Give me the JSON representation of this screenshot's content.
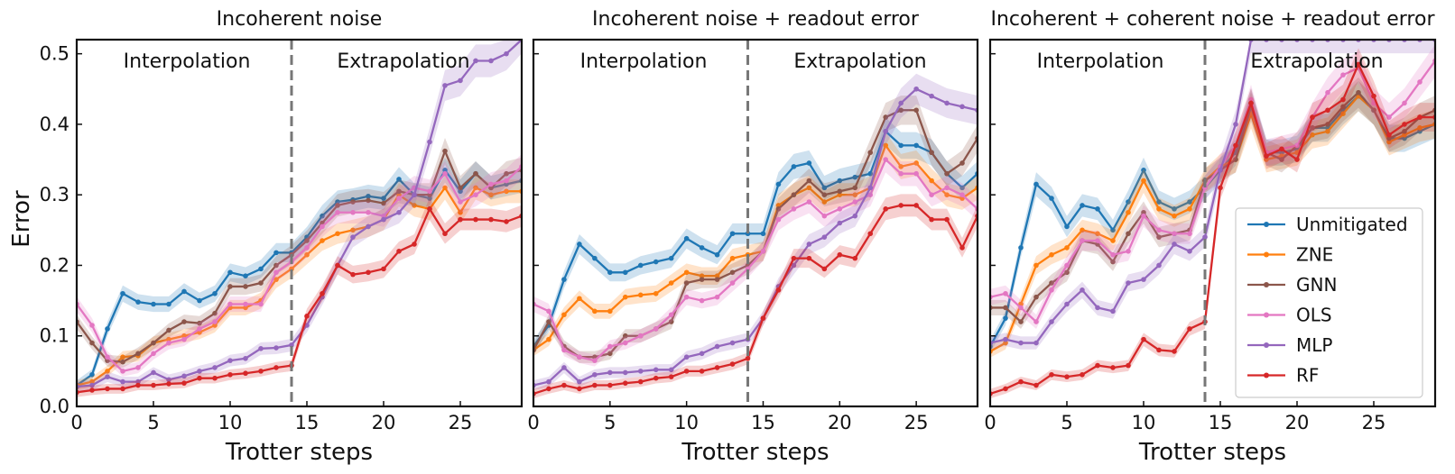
{
  "figure": {
    "ylabel": "Error",
    "xlabel": "Trotter steps",
    "region_left": "Interpolation",
    "region_right": "Extrapolation"
  },
  "colors": {
    "Unmitigated": "#1f77b4",
    "ZNE": "#ff7f0e",
    "GNN": "#8c564b",
    "OLS": "#e377c2",
    "MLP": "#9467bd",
    "RF": "#d62728"
  },
  "chart_data": [
    {
      "type": "line",
      "title": "Incoherent noise",
      "xlabel": "Trotter steps",
      "ylabel": "Error",
      "xlim": [
        0,
        29
      ],
      "ylim": [
        0,
        0.52
      ],
      "xticks": [
        0,
        5,
        10,
        15,
        20,
        25
      ],
      "yticks": [
        0.0,
        0.1,
        0.2,
        0.3,
        0.4,
        0.5
      ],
      "split_x": 14,
      "x": [
        0,
        1,
        2,
        3,
        4,
        5,
        6,
        7,
        8,
        9,
        10,
        11,
        12,
        13,
        14,
        15,
        16,
        17,
        18,
        19,
        20,
        21,
        22,
        23,
        24,
        25,
        26,
        27,
        28,
        29
      ],
      "series": [
        {
          "name": "Unmitigated",
          "values": [
            0.03,
            0.045,
            0.11,
            0.16,
            0.148,
            0.145,
            0.145,
            0.163,
            0.15,
            0.16,
            0.19,
            0.185,
            0.195,
            0.218,
            0.218,
            0.24,
            0.27,
            0.29,
            0.293,
            0.298,
            0.295,
            0.322,
            0.3,
            0.295,
            0.335,
            0.305,
            0.33,
            0.31,
            0.315,
            0.32
          ]
        },
        {
          "name": "ZNE",
          "values": [
            0.03,
            0.035,
            0.05,
            0.07,
            0.072,
            0.09,
            0.095,
            0.1,
            0.105,
            0.115,
            0.14,
            0.14,
            0.15,
            0.18,
            0.195,
            0.215,
            0.235,
            0.245,
            0.25,
            0.255,
            0.265,
            0.3,
            0.285,
            0.28,
            0.31,
            0.275,
            0.31,
            0.3,
            0.305,
            0.305
          ]
        },
        {
          "name": "GNN",
          "values": [
            0.12,
            0.09,
            0.065,
            0.063,
            0.075,
            0.09,
            0.108,
            0.12,
            0.118,
            0.132,
            0.17,
            0.17,
            0.175,
            0.2,
            0.215,
            0.235,
            0.26,
            0.285,
            0.29,
            0.292,
            0.288,
            0.305,
            0.3,
            0.3,
            0.362,
            0.31,
            0.33,
            0.31,
            0.33,
            0.335
          ]
        },
        {
          "name": "OLS",
          "values": [
            0.145,
            0.115,
            0.07,
            0.05,
            0.055,
            0.075,
            0.09,
            0.095,
            0.11,
            0.12,
            0.145,
            0.145,
            0.145,
            0.19,
            0.205,
            0.225,
            0.255,
            0.275,
            0.275,
            0.275,
            0.27,
            0.295,
            0.31,
            0.305,
            0.33,
            0.29,
            0.3,
            0.315,
            0.32,
            0.34
          ]
        },
        {
          "name": "MLP",
          "values": [
            0.028,
            0.03,
            0.042,
            0.035,
            0.035,
            0.048,
            0.038,
            0.043,
            0.05,
            0.055,
            0.065,
            0.068,
            0.082,
            0.083,
            0.087,
            0.115,
            0.155,
            0.2,
            0.24,
            0.255,
            0.265,
            0.275,
            0.3,
            0.375,
            0.455,
            0.462,
            0.49,
            0.49,
            0.5,
            0.525
          ]
        },
        {
          "name": "RF",
          "values": [
            0.02,
            0.023,
            0.025,
            0.025,
            0.03,
            0.03,
            0.032,
            0.033,
            0.04,
            0.04,
            0.045,
            0.047,
            0.05,
            0.055,
            0.058,
            0.128,
            0.16,
            0.2,
            0.187,
            0.19,
            0.195,
            0.22,
            0.23,
            0.28,
            0.245,
            0.265,
            0.265,
            0.265,
            0.262,
            0.27
          ]
        }
      ]
    },
    {
      "type": "line",
      "title": "Incoherent noise + readout error",
      "xlabel": "Trotter steps",
      "ylabel": "",
      "xlim": [
        0,
        29
      ],
      "ylim": [
        0,
        0.52
      ],
      "xticks": [
        0,
        5,
        10,
        15,
        20,
        25
      ],
      "yticks": [
        0.0,
        0.1,
        0.2,
        0.3,
        0.4,
        0.5
      ],
      "split_x": 14,
      "x": [
        0,
        1,
        2,
        3,
        4,
        5,
        6,
        7,
        8,
        9,
        10,
        11,
        12,
        13,
        14,
        15,
        16,
        17,
        18,
        19,
        20,
        21,
        22,
        23,
        24,
        25,
        26,
        27,
        28,
        29
      ],
      "series": [
        {
          "name": "Unmitigated",
          "values": [
            0.085,
            0.115,
            0.18,
            0.23,
            0.21,
            0.19,
            0.19,
            0.2,
            0.205,
            0.21,
            0.238,
            0.225,
            0.215,
            0.245,
            0.245,
            0.245,
            0.315,
            0.34,
            0.345,
            0.31,
            0.32,
            0.325,
            0.33,
            0.39,
            0.37,
            0.37,
            0.36,
            0.33,
            0.31,
            0.33
          ]
        },
        {
          "name": "ZNE",
          "values": [
            0.08,
            0.095,
            0.13,
            0.153,
            0.135,
            0.135,
            0.155,
            0.158,
            0.16,
            0.175,
            0.19,
            0.185,
            0.185,
            0.21,
            0.215,
            0.22,
            0.285,
            0.3,
            0.31,
            0.29,
            0.3,
            0.3,
            0.31,
            0.37,
            0.34,
            0.345,
            0.32,
            0.3,
            0.295,
            0.31
          ]
        },
        {
          "name": "GNN",
          "values": [
            0.08,
            0.12,
            0.085,
            0.07,
            0.07,
            0.075,
            0.1,
            0.1,
            0.11,
            0.12,
            0.175,
            0.18,
            0.18,
            0.19,
            0.2,
            0.22,
            0.28,
            0.3,
            0.32,
            0.3,
            0.305,
            0.31,
            0.36,
            0.41,
            0.42,
            0.42,
            0.36,
            0.33,
            0.345,
            0.38
          ]
        },
        {
          "name": "OLS",
          "values": [
            0.145,
            0.135,
            0.08,
            0.07,
            0.065,
            0.085,
            0.09,
            0.1,
            0.11,
            0.13,
            0.155,
            0.15,
            0.155,
            0.175,
            0.195,
            0.22,
            0.265,
            0.28,
            0.29,
            0.27,
            0.28,
            0.29,
            0.3,
            0.35,
            0.33,
            0.33,
            0.3,
            0.31,
            0.3,
            0.28
          ]
        },
        {
          "name": "MLP",
          "values": [
            0.03,
            0.035,
            0.055,
            0.035,
            0.045,
            0.048,
            0.048,
            0.05,
            0.052,
            0.052,
            0.07,
            0.075,
            0.085,
            0.09,
            0.095,
            0.125,
            0.17,
            0.2,
            0.23,
            0.24,
            0.26,
            0.27,
            0.31,
            0.39,
            0.43,
            0.45,
            0.44,
            0.43,
            0.425,
            0.42
          ]
        },
        {
          "name": "RF",
          "values": [
            0.018,
            0.025,
            0.03,
            0.025,
            0.03,
            0.03,
            0.033,
            0.035,
            0.04,
            0.042,
            0.05,
            0.05,
            0.055,
            0.06,
            0.068,
            0.125,
            0.165,
            0.21,
            0.21,
            0.195,
            0.215,
            0.21,
            0.245,
            0.28,
            0.285,
            0.285,
            0.265,
            0.265,
            0.225,
            0.27
          ]
        }
      ]
    },
    {
      "type": "line",
      "title": "Incoherent + coherent noise + readout error",
      "xlabel": "Trotter steps",
      "ylabel": "",
      "xlim": [
        0,
        29
      ],
      "ylim": [
        0,
        0.52
      ],
      "xticks": [
        0,
        5,
        10,
        15,
        20,
        25
      ],
      "yticks": [
        0.0,
        0.1,
        0.2,
        0.3,
        0.4,
        0.5
      ],
      "split_x": 14,
      "x": [
        0,
        1,
        2,
        3,
        4,
        5,
        6,
        7,
        8,
        9,
        10,
        11,
        12,
        13,
        14,
        15,
        16,
        17,
        18,
        19,
        20,
        21,
        22,
        23,
        24,
        25,
        26,
        27,
        28,
        29
      ],
      "series": [
        {
          "name": "Unmitigated",
          "values": [
            0.085,
            0.125,
            0.225,
            0.315,
            0.295,
            0.255,
            0.285,
            0.28,
            0.25,
            0.29,
            0.335,
            0.29,
            0.28,
            0.29,
            0.31,
            0.335,
            0.36,
            0.43,
            0.36,
            0.36,
            0.365,
            0.395,
            0.395,
            0.42,
            0.44,
            0.42,
            0.38,
            0.38,
            0.39,
            0.4
          ]
        },
        {
          "name": "ZNE",
          "values": [
            0.078,
            0.09,
            0.145,
            0.2,
            0.215,
            0.225,
            0.25,
            0.245,
            0.235,
            0.275,
            0.32,
            0.28,
            0.27,
            0.28,
            0.32,
            0.34,
            0.35,
            0.415,
            0.35,
            0.355,
            0.36,
            0.385,
            0.39,
            0.415,
            0.44,
            0.42,
            0.375,
            0.385,
            0.395,
            0.4
          ]
        },
        {
          "name": "GNN",
          "values": [
            0.14,
            0.14,
            0.12,
            0.155,
            0.175,
            0.19,
            0.235,
            0.23,
            0.205,
            0.245,
            0.275,
            0.24,
            0.245,
            0.25,
            0.32,
            0.335,
            0.35,
            0.425,
            0.36,
            0.35,
            0.37,
            0.395,
            0.4,
            0.425,
            0.445,
            0.42,
            0.38,
            0.39,
            0.41,
            0.42
          ]
        },
        {
          "name": "OLS",
          "values": [
            0.155,
            0.16,
            0.14,
            0.12,
            0.165,
            0.2,
            0.235,
            0.235,
            0.215,
            0.22,
            0.27,
            0.25,
            0.245,
            0.245,
            0.31,
            0.34,
            0.37,
            0.435,
            0.36,
            0.365,
            0.37,
            0.41,
            0.445,
            0.47,
            0.48,
            0.43,
            0.41,
            0.43,
            0.46,
            0.49
          ]
        },
        {
          "name": "MLP",
          "values": [
            0.09,
            0.095,
            0.09,
            0.09,
            0.12,
            0.145,
            0.165,
            0.14,
            0.135,
            0.175,
            0.18,
            0.2,
            0.23,
            0.22,
            0.24,
            0.335,
            0.4,
            0.525,
            0.525,
            0.525,
            0.525,
            0.525,
            0.525,
            0.525,
            0.525,
            0.525,
            0.525,
            0.525,
            0.525,
            0.525
          ]
        },
        {
          "name": "RF",
          "values": [
            0.018,
            0.025,
            0.035,
            0.03,
            0.045,
            0.042,
            0.045,
            0.058,
            0.055,
            0.058,
            0.095,
            0.08,
            0.078,
            0.11,
            0.12,
            0.31,
            0.37,
            0.43,
            0.355,
            0.365,
            0.35,
            0.41,
            0.42,
            0.435,
            0.485,
            0.44,
            0.385,
            0.4,
            0.41,
            0.41
          ]
        }
      ]
    }
  ],
  "legend": [
    "Unmitigated",
    "ZNE",
    "GNN",
    "OLS",
    "MLP",
    "RF"
  ]
}
